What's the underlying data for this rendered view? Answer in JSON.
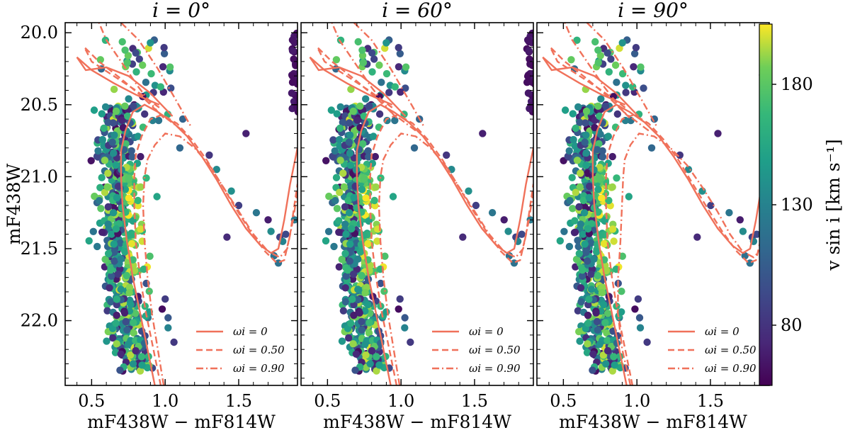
{
  "chart_data": {
    "type": "scatter",
    "panels": [
      {
        "title": "i = 0°",
        "xlabel": "mF438W − mF814W",
        "ylabel": "mF438W"
      },
      {
        "title": "i = 60°",
        "xlabel": "mF438W − mF814W",
        "ylabel": ""
      },
      {
        "title": "i = 90°",
        "xlabel": "mF438W − mF814W",
        "ylabel": ""
      }
    ],
    "xlim": [
      0.32,
      1.9
    ],
    "ylim": [
      22.45,
      19.93
    ],
    "xticks": [
      0.5,
      1.0,
      1.5
    ],
    "xtick_labels": [
      "0.5",
      "1.0",
      "1.5"
    ],
    "yticks": [
      20.0,
      20.5,
      21.0,
      21.5,
      22.0
    ],
    "ytick_labels": [
      "20.0",
      "20.5",
      "21.0",
      "21.5",
      "22.0"
    ],
    "colorbar": {
      "label": "v sin i  [km s⁻¹]",
      "range": [
        55,
        205
      ],
      "ticks": [
        80,
        130,
        180
      ],
      "tick_labels": [
        "80",
        "130",
        "180"
      ],
      "colormap": "viridis"
    },
    "legend": {
      "position": "lower-right",
      "entries": [
        {
          "label": "ωi = 0",
          "style": "solid"
        },
        {
          "label": "ωi = 0.50",
          "style": "dashed"
        },
        {
          "label": "ωi = 0.90",
          "style": "dashdot"
        }
      ]
    },
    "line_color": "#f0715a",
    "isochrones": {
      "w0": [
        [
          0.93,
          22.45
        ],
        [
          0.88,
          22.2
        ],
        [
          0.83,
          21.95
        ],
        [
          0.78,
          21.7
        ],
        [
          0.74,
          21.45
        ],
        [
          0.71,
          21.2
        ],
        [
          0.7,
          21.0
        ],
        [
          0.7,
          20.82
        ],
        [
          0.73,
          20.68
        ],
        [
          0.78,
          20.55
        ],
        [
          0.86,
          20.5
        ],
        [
          0.95,
          20.55
        ],
        [
          1.05,
          20.62
        ],
        [
          1.15,
          20.72
        ],
        [
          1.25,
          20.86
        ],
        [
          1.35,
          21.02
        ],
        [
          1.45,
          21.2
        ],
        [
          1.55,
          21.36
        ],
        [
          1.65,
          21.48
        ],
        [
          1.72,
          21.53
        ],
        [
          1.77,
          21.5
        ],
        [
          1.81,
          21.3
        ],
        [
          1.85,
          21.05
        ],
        [
          1.9,
          20.8
        ]
      ],
      "w050": [
        [
          0.97,
          22.45
        ],
        [
          0.92,
          22.2
        ],
        [
          0.87,
          21.95
        ],
        [
          0.83,
          21.7
        ],
        [
          0.8,
          21.45
        ],
        [
          0.79,
          21.2
        ],
        [
          0.79,
          21.0
        ],
        [
          0.8,
          20.85
        ],
        [
          0.84,
          20.72
        ],
        [
          0.9,
          20.6
        ],
        [
          0.98,
          20.57
        ],
        [
          1.08,
          20.63
        ],
        [
          1.18,
          20.74
        ],
        [
          1.28,
          20.88
        ],
        [
          1.38,
          21.05
        ],
        [
          1.48,
          21.22
        ],
        [
          1.58,
          21.38
        ],
        [
          1.68,
          21.52
        ],
        [
          1.76,
          21.6
        ],
        [
          1.81,
          21.58
        ],
        [
          1.85,
          21.4
        ],
        [
          1.9,
          21.05
        ]
      ],
      "w090": [
        [
          0.99,
          22.45
        ],
        [
          0.95,
          22.2
        ],
        [
          0.91,
          21.95
        ],
        [
          0.88,
          21.7
        ],
        [
          0.86,
          21.45
        ],
        [
          0.85,
          21.2
        ],
        [
          0.86,
          21.0
        ],
        [
          0.88,
          20.88
        ],
        [
          0.93,
          20.78
        ],
        [
          1.0,
          20.7
        ],
        [
          1.1,
          20.72
        ],
        [
          1.2,
          20.8
        ],
        [
          1.3,
          20.92
        ],
        [
          1.4,
          21.08
        ],
        [
          1.5,
          21.24
        ],
        [
          1.6,
          21.4
        ],
        [
          1.7,
          21.52
        ],
        [
          1.78,
          21.56
        ],
        [
          1.83,
          21.5
        ],
        [
          1.87,
          21.3
        ],
        [
          1.9,
          21.1
        ]
      ],
      "upper_w0": [
        [
          0.96,
          20.5
        ],
        [
          0.8,
          20.43
        ],
        [
          0.65,
          20.35
        ],
        [
          0.5,
          20.26
        ],
        [
          0.4,
          20.17
        ],
        [
          0.46,
          20.26
        ],
        [
          0.6,
          20.24
        ],
        [
          0.75,
          20.3
        ],
        [
          0.9,
          20.42
        ],
        [
          1.05,
          20.58
        ]
      ],
      "upper_w050": [
        [
          0.96,
          20.52
        ],
        [
          0.8,
          20.4
        ],
        [
          0.65,
          20.3
        ],
        [
          0.5,
          20.2
        ],
        [
          0.45,
          20.1
        ],
        [
          0.55,
          20.2
        ],
        [
          0.7,
          20.32
        ],
        [
          0.85,
          20.45
        ],
        [
          1.0,
          20.6
        ]
      ],
      "upper_w090": [
        [
          1.12,
          20.68
        ],
        [
          0.95,
          20.55
        ],
        [
          0.82,
          20.38
        ],
        [
          0.7,
          20.2
        ],
        [
          0.6,
          20.05
        ],
        [
          0.55,
          19.93
        ]
      ],
      "upper_w090_b": [
        [
          0.7,
          19.93
        ],
        [
          0.82,
          20.05
        ],
        [
          0.95,
          20.25
        ],
        [
          1.08,
          20.48
        ],
        [
          1.18,
          20.66
        ]
      ]
    },
    "note": "Scatter points colored by v sin i; approximately 560 stars per panel forming a main sequence (colour 0.6-1.0) plus sparse subgiant/red-giant stars."
  }
}
